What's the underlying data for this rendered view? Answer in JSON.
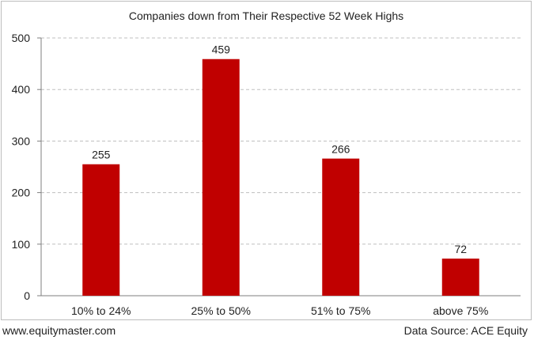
{
  "chart_data": {
    "type": "bar",
    "title": "Companies down from Their Respective 52 Week Highs",
    "categories": [
      "10% to 24%",
      "25% to 50%",
      "51% to 75%",
      "above 75%"
    ],
    "values": [
      255,
      459,
      266,
      72
    ],
    "data_labels": [
      "255",
      "459",
      "266",
      "72"
    ],
    "y_ticks": [
      "0",
      "100",
      "200",
      "300",
      "400",
      "500"
    ],
    "ylim": [
      0,
      500
    ],
    "grid": "horizontal-dashed",
    "bar_color": "#c00000",
    "xlabel": "",
    "ylabel": ""
  },
  "footer": {
    "source_site": "www.equitymaster.com",
    "data_source": "Data Source: ACE Equity"
  }
}
